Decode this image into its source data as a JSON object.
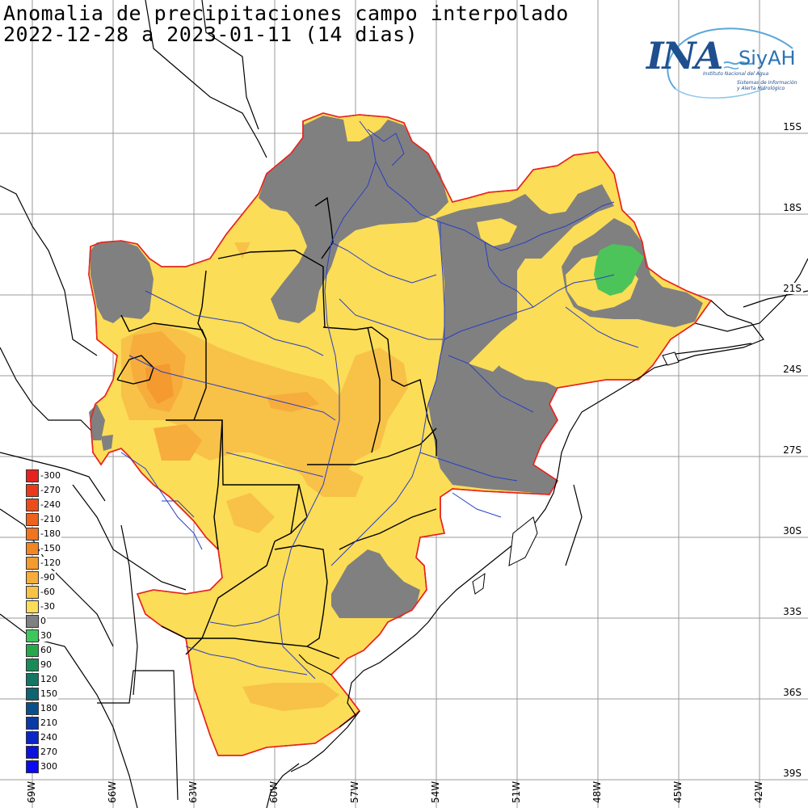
{
  "title": {
    "line1": "Anomalia de precipitaciones campo interpolado",
    "line2": "2022-12-28 a 2023-01-11 (14 dias)"
  },
  "logo": {
    "name": "INA",
    "system": "SiyAH",
    "institution": "Instituto Nacional del Agua",
    "system_line1": "Sistemas de Información",
    "system_line2": "y Alerta Hidrológico"
  },
  "latitude_labels": [
    "15S",
    "18S",
    "21S",
    "24S",
    "27S",
    "30S",
    "33S",
    "36S",
    "39S"
  ],
  "longitude_labels": [
    "69W",
    "66W",
    "63W",
    "60W",
    "57W",
    "54W",
    "51W",
    "48W",
    "45W",
    "42W"
  ],
  "legend": {
    "items": [
      {
        "label": "-300",
        "color": "#e8231e"
      },
      {
        "label": "-270",
        "color": "#ea3a1c"
      },
      {
        "label": "-240",
        "color": "#ec4e1b"
      },
      {
        "label": "-210",
        "color": "#ee621c"
      },
      {
        "label": "-180",
        "color": "#f0751e"
      },
      {
        "label": "-150",
        "color": "#f28623"
      },
      {
        "label": "-120",
        "color": "#f49a2f"
      },
      {
        "label": "-90",
        "color": "#f6ad3c"
      },
      {
        "label": "-60",
        "color": "#f8c148"
      },
      {
        "label": "-30",
        "color": "#fbdd57"
      },
      {
        "label": "0",
        "color": "#808080"
      },
      {
        "label": "30",
        "color": "#3cc85a"
      },
      {
        "label": "60",
        "color": "#28a84c"
      },
      {
        "label": "90",
        "color": "#1a8a58"
      },
      {
        "label": "120",
        "color": "#137764"
      },
      {
        "label": "150",
        "color": "#0e6470"
      },
      {
        "label": "180",
        "color": "#0a4f8c"
      },
      {
        "label": "210",
        "color": "#0a3aa8"
      },
      {
        "label": "240",
        "color": "#0a26c4"
      },
      {
        "label": "270",
        "color": "#0a14dc"
      },
      {
        "label": "300",
        "color": "#0a0af0"
      }
    ]
  }
}
